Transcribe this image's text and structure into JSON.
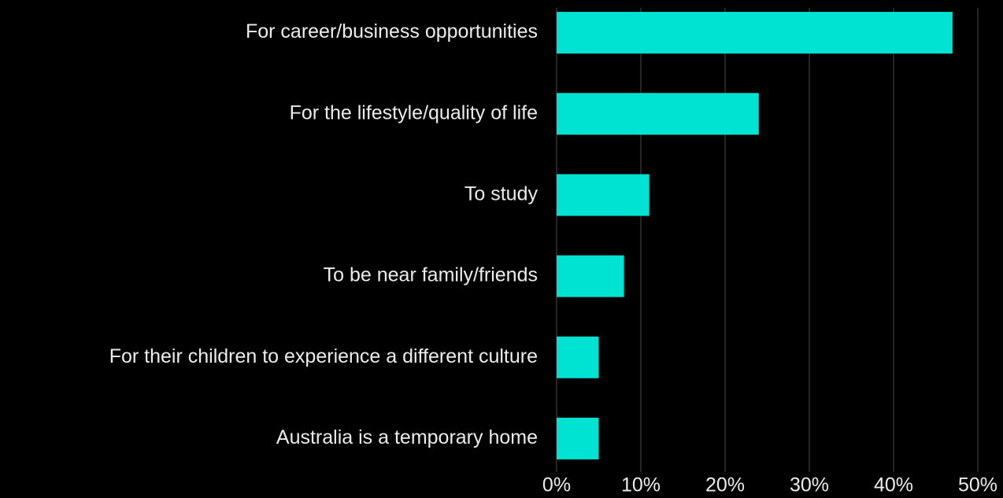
{
  "chart_data": {
    "type": "bar",
    "orientation": "horizontal",
    "categories": [
      "For career/business opportunities",
      "For the lifestyle/quality of life",
      "To study",
      "To be near family/friends",
      "For their children to experience a different culture",
      "Australia is a temporary home"
    ],
    "values": [
      47,
      24,
      11,
      8,
      5,
      5
    ],
    "color": "#00e2d2",
    "xlim": [
      0,
      50
    ],
    "xticks": [
      {
        "value": 0,
        "label": "0%"
      },
      {
        "value": 10,
        "label": "10%"
      },
      {
        "value": 20,
        "label": "20%"
      },
      {
        "value": 30,
        "label": "30%"
      },
      {
        "value": 40,
        "label": "40%"
      },
      {
        "value": 50,
        "label": "50%"
      }
    ],
    "grid": true
  }
}
